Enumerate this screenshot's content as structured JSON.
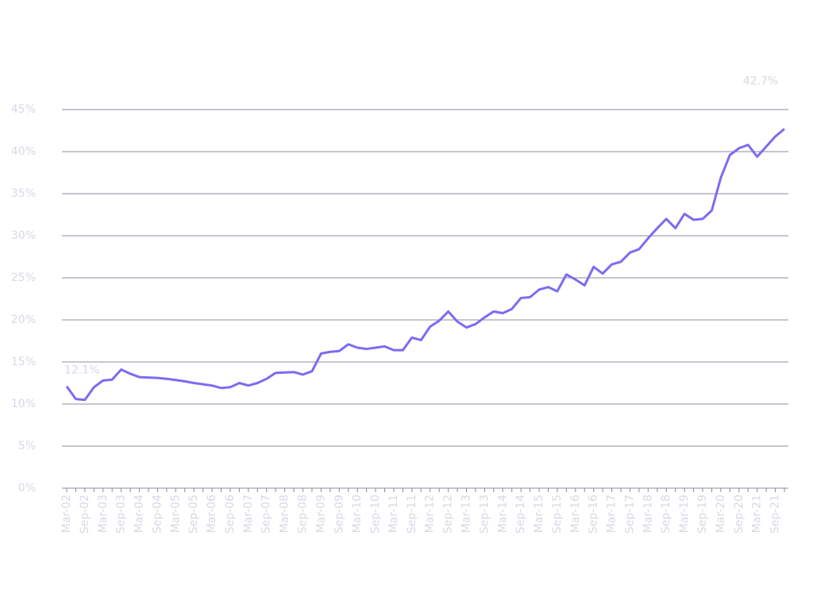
{
  "chart_data": {
    "type": "line",
    "categories": [
      "Mar-02",
      null,
      "Sep-02",
      null,
      "Mar-03",
      null,
      "Sep-03",
      null,
      "Mar-04",
      null,
      "Sep-04",
      null,
      "Mar-05",
      null,
      "Sep-05",
      null,
      "Mar-06",
      null,
      "Sep-06",
      null,
      "Mar-07",
      null,
      "Sep-07",
      null,
      "Mar-08",
      null,
      "Sep-08",
      null,
      "Mar-09",
      null,
      "Sep-09",
      null,
      "Mar-10",
      null,
      "Sep-10",
      null,
      "Mar-11",
      null,
      "Sep-11",
      null,
      "Mar-12",
      null,
      "Sep-12",
      null,
      "Mar-13",
      null,
      "Sep-13",
      null,
      "Mar-14",
      null,
      "Sep-14",
      null,
      "Mar-15",
      null,
      "Sep-15",
      null,
      "Mar-16",
      null,
      "Sep-16",
      null,
      "Mar-17",
      null,
      "Sep-17",
      null,
      "Mar-18",
      null,
      "Sep-18",
      null,
      "Mar-19",
      null,
      "Sep-19",
      null,
      "Mar-20",
      null,
      "Sep-20",
      null,
      "Mar-21",
      null,
      "Sep-21",
      null
    ],
    "series": [
      {
        "color": "#7b6cf0",
        "values": [
          12.1,
          10.6,
          10.5,
          12.0,
          12.8,
          12.9,
          14.1,
          13.6,
          13.2,
          13.15,
          13.1,
          13.0,
          12.85,
          12.7,
          12.5,
          12.35,
          12.2,
          11.9,
          12.0,
          12.5,
          12.2,
          12.5,
          13.0,
          13.7,
          13.75,
          13.8,
          13.5,
          13.9,
          16.0,
          16.2,
          16.3,
          17.1,
          16.7,
          16.55,
          16.7,
          16.85,
          16.4,
          16.4,
          17.9,
          17.6,
          19.2,
          19.9,
          21.0,
          19.8,
          19.1,
          19.5,
          20.3,
          21.0,
          20.8,
          21.3,
          22.6,
          22.7,
          23.6,
          23.9,
          23.4,
          25.4,
          24.8,
          24.1,
          26.3,
          25.5,
          26.6,
          26.9,
          28.0,
          28.4,
          29.7,
          30.9,
          32.0,
          30.9,
          32.6,
          31.9,
          32.0,
          33.0,
          36.9,
          39.6,
          40.4,
          40.8,
          39.4,
          40.6,
          41.8,
          42.7
        ],
        "value_labels": [
          "12.1%",
          null,
          null,
          null,
          null,
          null,
          null,
          null,
          null,
          null,
          null,
          null,
          null,
          null,
          null,
          null,
          null,
          null,
          null,
          null,
          null,
          null,
          null,
          null,
          null,
          null,
          null,
          null,
          null,
          null,
          null,
          null,
          null,
          null,
          null,
          null,
          null,
          null,
          null,
          null,
          null,
          null,
          null,
          null,
          null,
          null,
          null,
          null,
          null,
          null,
          null,
          null,
          null,
          null,
          null,
          null,
          null,
          null,
          null,
          null,
          null,
          null,
          null,
          null,
          null,
          null,
          null,
          null,
          null,
          null,
          null,
          null,
          null,
          null,
          null,
          null,
          null,
          null,
          null,
          "42.7%"
        ]
      }
    ],
    "ylim": [
      0,
      45
    ],
    "yticks": [
      {
        "value": 0,
        "label": "0%"
      },
      {
        "value": 5,
        "label": "5%"
      },
      {
        "value": 10,
        "label": "10%"
      },
      {
        "value": 15,
        "label": "15%"
      },
      {
        "value": 20,
        "label": "20%"
      },
      {
        "value": 25,
        "label": "25%"
      },
      {
        "value": 30,
        "label": "30%"
      },
      {
        "value": 35,
        "label": "35%"
      },
      {
        "value": 40,
        "label": "40%"
      },
      {
        "value": 45,
        "label": "45%"
      }
    ],
    "grid": true
  }
}
